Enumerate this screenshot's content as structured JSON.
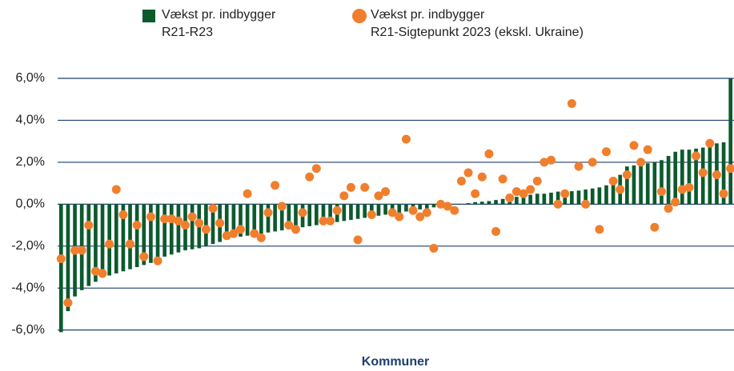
{
  "chart_data": {
    "type": "bar_dot",
    "x_label": "Kommuner",
    "categories": [
      null,
      null,
      null,
      null,
      null,
      null,
      null,
      null,
      null,
      null,
      null,
      null,
      null,
      null,
      null,
      null,
      null,
      null,
      null,
      null,
      null,
      null,
      null,
      null,
      null,
      null,
      null,
      null,
      null,
      null,
      null,
      null,
      null,
      null,
      null,
      null,
      null,
      null,
      null,
      null,
      null,
      null,
      null,
      null,
      null,
      null,
      null,
      null,
      null,
      null,
      null,
      null,
      null,
      null,
      null,
      null,
      null,
      null,
      null,
      null,
      null,
      null,
      null,
      null,
      null,
      null,
      null,
      null,
      null,
      null,
      null,
      null,
      null,
      null,
      null,
      null,
      null,
      null,
      null,
      null,
      null,
      null,
      null,
      null,
      null,
      null,
      null,
      null,
      null,
      null,
      null,
      null,
      null,
      null,
      null,
      null,
      null,
      null
    ],
    "series": [
      {
        "name": "Vækst pr. indbygger\nR21-R23",
        "color": "#0b5a2e",
        "kind": "bar",
        "values": [
          -6.1,
          -5.1,
          -4.4,
          -4.1,
          -3.9,
          -3.7,
          -3.5,
          -3.4,
          -3.3,
          -3.2,
          -3.1,
          -3.0,
          -2.9,
          -2.8,
          -2.6,
          -2.5,
          -2.4,
          -2.3,
          -2.2,
          -2.15,
          -2.1,
          -2.0,
          -1.9,
          -1.8,
          -1.7,
          -1.6,
          -1.55,
          -1.5,
          -1.45,
          -1.4,
          -1.35,
          -1.3,
          -1.25,
          -1.2,
          -1.15,
          -1.1,
          -1.05,
          -1.0,
          -0.95,
          -0.9,
          -0.85,
          -0.8,
          -0.75,
          -0.7,
          -0.65,
          -0.6,
          -0.55,
          -0.5,
          -0.45,
          -0.4,
          -0.35,
          -0.3,
          -0.25,
          -0.2,
          -0.15,
          -0.1,
          -0.05,
          -0.02,
          0.0,
          0.05,
          0.1,
          0.12,
          0.15,
          0.2,
          0.25,
          0.3,
          0.35,
          0.4,
          0.45,
          0.5,
          0.5,
          0.55,
          0.6,
          0.6,
          0.62,
          0.65,
          0.7,
          0.75,
          0.8,
          0.9,
          1.1,
          1.4,
          1.8,
          1.85,
          1.9,
          1.95,
          2.0,
          2.1,
          2.3,
          2.5,
          2.6,
          2.6,
          2.65,
          2.7,
          2.8,
          2.9,
          2.95,
          6.0
        ]
      },
      {
        "name": "Vækst pr. indbygger\nR21-Sigtepunkt 2023 (ekskl. Ukraine)",
        "color": "#f07f2d",
        "kind": "dot",
        "values": [
          -2.6,
          -4.7,
          -2.2,
          -2.2,
          -1.0,
          -3.2,
          -3.3,
          -1.9,
          0.7,
          -0.5,
          -1.9,
          -1.0,
          -2.5,
          -0.6,
          -2.7,
          -0.7,
          -0.7,
          -0.8,
          -1.0,
          -0.6,
          -0.9,
          -1.2,
          -0.2,
          -0.9,
          -1.5,
          -1.4,
          -1.2,
          0.5,
          -1.4,
          -1.6,
          -0.4,
          0.9,
          -0.1,
          -1.0,
          -1.2,
          -0.4,
          1.3,
          1.7,
          -0.8,
          -0.8,
          -0.3,
          0.4,
          0.8,
          -1.7,
          0.8,
          -0.5,
          0.4,
          0.6,
          -0.4,
          -0.6,
          3.1,
          -0.3,
          -0.6,
          -0.4,
          -2.1,
          0.0,
          -0.1,
          -0.3,
          1.1,
          1.5,
          0.5,
          1.3,
          2.4,
          -1.3,
          1.2,
          0.3,
          0.6,
          0.5,
          0.7,
          1.1,
          2.0,
          2.1,
          0.0,
          0.5,
          4.8,
          1.8,
          0.0,
          2.0,
          -1.2,
          2.5,
          1.1,
          0.7,
          1.4,
          2.8,
          2.0,
          2.6,
          -1.1,
          0.6,
          -0.2,
          0.1,
          0.7,
          0.8,
          2.3,
          1.5,
          2.9,
          1.4,
          0.5,
          1.7
        ]
      }
    ],
    "ylim": [
      -6.2,
      6.0
    ],
    "yticks": [
      {
        "value": -6,
        "label": "-6,0%"
      },
      {
        "value": -4,
        "label": "-4,0%"
      },
      {
        "value": -2,
        "label": "-2,0%"
      },
      {
        "value": 0,
        "label": "0,0%"
      },
      {
        "value": 2,
        "label": "2,0%"
      },
      {
        "value": 4,
        "label": "4,0%"
      },
      {
        "value": 6,
        "label": "6,0%"
      }
    ],
    "grid": true
  }
}
